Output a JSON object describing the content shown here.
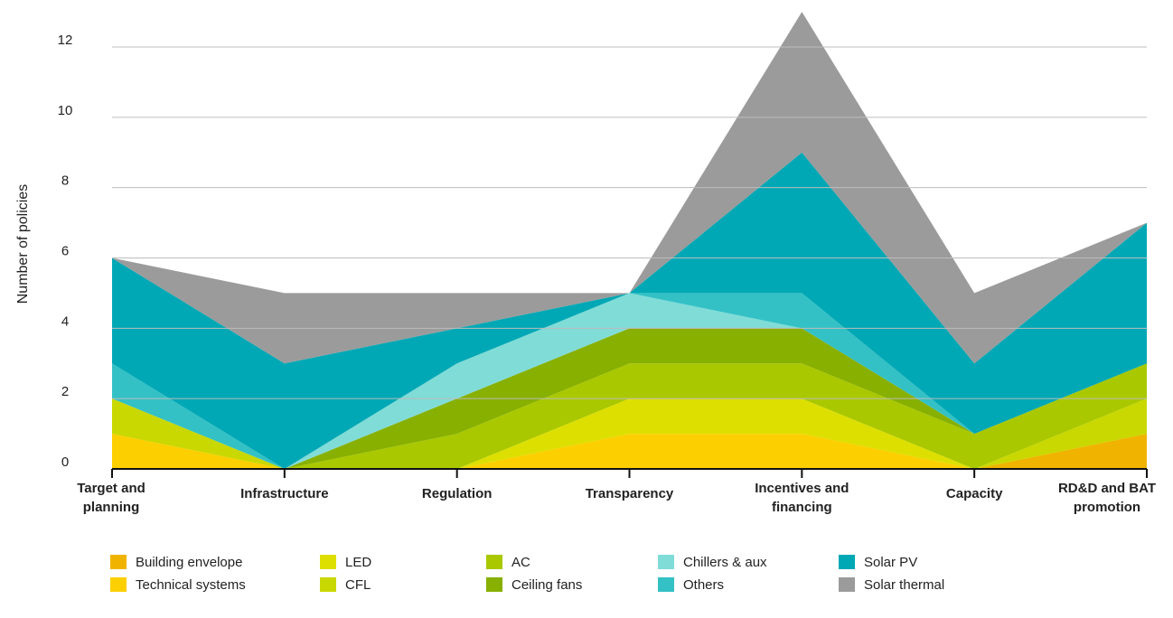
{
  "chart_data": {
    "type": "area",
    "stacked": true,
    "categories": [
      [
        "Target and",
        "planning"
      ],
      [
        "Infrastructure"
      ],
      [
        "Regulation"
      ],
      [
        "Transparency"
      ],
      [
        "Incentives and",
        "financing"
      ],
      [
        "Capacity"
      ],
      [
        "RD&D and BAT",
        "promotion"
      ]
    ],
    "ylabel": "Number of policies",
    "xlabel": "",
    "title": "",
    "ylim": [
      0,
      12
    ],
    "yticks": [
      0,
      2,
      4,
      6,
      8,
      10,
      12
    ],
    "grid": true,
    "legend_position": "bottom",
    "series": [
      {
        "name": "Building envelope",
        "color": "#f0b400",
        "values": [
          0,
          0,
          0,
          0,
          0,
          0,
          1
        ]
      },
      {
        "name": "Technical systems",
        "color": "#fccf00",
        "values": [
          1,
          0,
          0,
          1,
          1,
          0,
          0
        ]
      },
      {
        "name": "LED",
        "color": "#dddf00",
        "values": [
          0,
          0,
          0,
          1,
          1,
          0,
          0
        ]
      },
      {
        "name": "CFL",
        "color": "#c9d800",
        "values": [
          1,
          0,
          0,
          0,
          0,
          0,
          1
        ]
      },
      {
        "name": "AC",
        "color": "#a9c800",
        "values": [
          0,
          0,
          1,
          1,
          1,
          1,
          1
        ]
      },
      {
        "name": "Ceiling fans",
        "color": "#87b000",
        "values": [
          0,
          0,
          1,
          1,
          1,
          0,
          0
        ]
      },
      {
        "name": "Chillers & aux",
        "color": "#80dcd7",
        "values": [
          0,
          0,
          1,
          1,
          0,
          0,
          0
        ]
      },
      {
        "name": "Others",
        "color": "#33c1c5",
        "values": [
          1,
          0,
          0,
          0,
          1,
          0,
          0
        ]
      },
      {
        "name": "Solar PV",
        "color": "#00a8b5",
        "values": [
          3,
          3,
          1,
          0,
          4,
          2,
          4
        ]
      },
      {
        "name": "Solar thermal",
        "color": "#9b9b9b",
        "values": [
          0,
          2,
          1,
          0,
          4,
          2,
          0
        ]
      }
    ]
  },
  "legend": {
    "rows": [
      [
        "Building envelope",
        "LED",
        "AC",
        "Chillers & aux",
        "Solar PV"
      ],
      [
        "Technical systems",
        "CFL",
        "Ceiling fans",
        "Others",
        "Solar thermal"
      ]
    ]
  }
}
